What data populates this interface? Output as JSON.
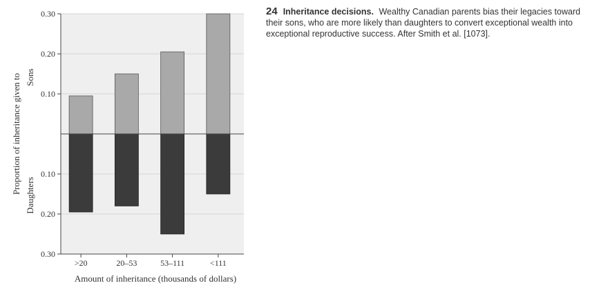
{
  "chart_data": {
    "type": "bar",
    "categories": [
      ">20",
      "20–53",
      "53–111",
      "<111"
    ],
    "series": [
      {
        "name": "Sons",
        "values": [
          0.095,
          0.15,
          0.205,
          0.3
        ]
      },
      {
        "name": "Daughters",
        "values": [
          0.195,
          0.18,
          0.25,
          0.15
        ]
      }
    ],
    "y_ticks_top": [
      "0.30",
      "0.20",
      "0.10"
    ],
    "y_ticks_bottom": [
      "0.10",
      "0.20",
      "0.30"
    ],
    "ylim": [
      -0.3,
      0.3
    ],
    "ylabel": "Proportion of inheritance given to",
    "ylabel_top": "Sons",
    "ylabel_bottom": "Daughters",
    "xlabel": "Amount of inheritance (thousands of dollars)",
    "grid": true,
    "colors": {
      "sons": "#a9a9a9",
      "daughters": "#3b3b3b",
      "background": "#efefef"
    }
  },
  "caption": {
    "number": "24",
    "title": "Inheritance decisions.",
    "text": "Wealthy Canadian parents bias their legacies toward their sons, who are more likely than daughters to convert exceptional wealth into exceptional reproductive success. After Smith et al. [1073]."
  }
}
